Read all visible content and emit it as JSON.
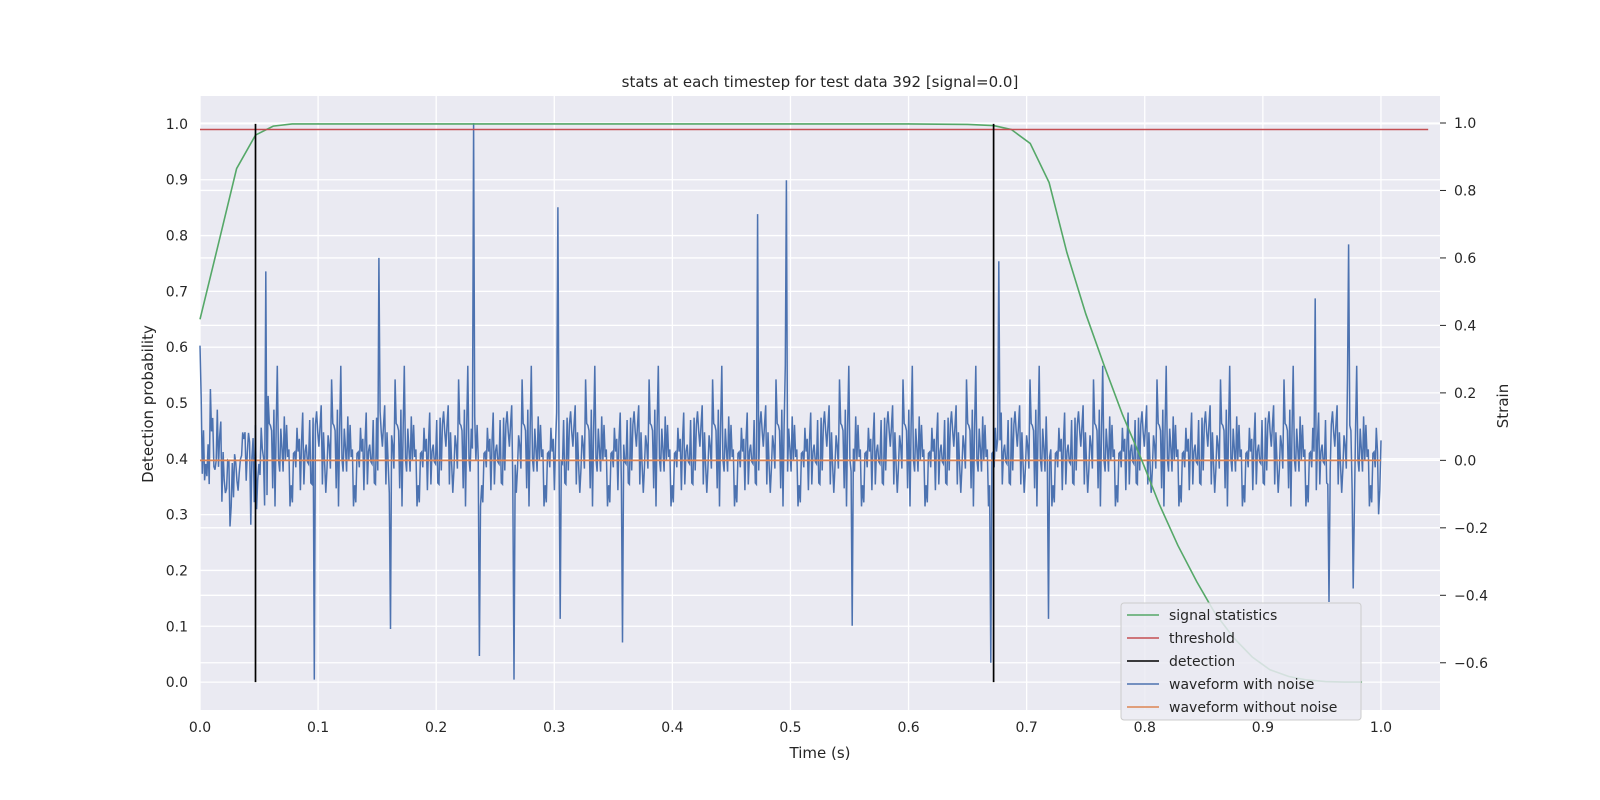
{
  "chart_data": {
    "type": "line",
    "title": "stats at each timestep for test data 392 [signal=0.0]",
    "xlabel": "Time (s)",
    "ylabel_left": "Detection probability",
    "ylabel_right": "Strain",
    "xlim": [
      0.0,
      1.05
    ],
    "ylim_left": [
      -0.05,
      1.05
    ],
    "ylim_right": [
      -0.74,
      1.08
    ],
    "xticks": [
      "0.0",
      "0.1",
      "0.2",
      "0.3",
      "0.4",
      "0.5",
      "0.6",
      "0.7",
      "0.8",
      "0.9",
      "1.0"
    ],
    "yticks_left": [
      "0.0",
      "0.1",
      "0.2",
      "0.3",
      "0.4",
      "0.5",
      "0.6",
      "0.7",
      "0.8",
      "0.9",
      "1.0"
    ],
    "yticks_right": [
      "−0.6",
      "−0.4",
      "−0.2",
      "0.0",
      "0.2",
      "0.4",
      "0.6",
      "0.8",
      "1.0"
    ],
    "grid": true,
    "legend_position": "lower-right",
    "colors": {
      "signal_statistics": "#55a868",
      "threshold": "#c44e52",
      "detection": "#000000",
      "waveform_with_noise": "#4c72b0",
      "waveform_without_noise": "#dd8452"
    },
    "series": [
      {
        "name": "signal statistics",
        "axis": "left",
        "x": [
          0.0,
          0.015,
          0.031,
          0.047,
          0.062,
          0.078,
          0.1,
          0.2,
          0.3,
          0.4,
          0.5,
          0.6,
          0.65,
          0.672,
          0.687,
          0.703,
          0.719,
          0.734,
          0.75,
          0.766,
          0.781,
          0.797,
          0.812,
          0.828,
          0.844,
          0.859,
          0.875,
          0.891,
          0.906,
          0.922,
          0.937,
          0.953,
          0.969,
          0.984
        ],
        "y": [
          0.65,
          0.78,
          0.92,
          0.98,
          0.996,
          1.0,
          1.0,
          1.0,
          1.0,
          1.0,
          1.0,
          1.0,
          0.999,
          0.997,
          0.99,
          0.965,
          0.895,
          0.77,
          0.66,
          0.565,
          0.48,
          0.4,
          0.32,
          0.245,
          0.18,
          0.125,
          0.08,
          0.045,
          0.022,
          0.01,
          0.004,
          0.001,
          0.0,
          0.0
        ]
      },
      {
        "name": "threshold",
        "axis": "left",
        "x": [
          0.0,
          1.04
        ],
        "y": [
          0.99,
          0.99
        ]
      },
      {
        "name": "detection",
        "axis": "left",
        "type": "vlines",
        "x": [
          0.047,
          0.672
        ],
        "ymin": 0.0,
        "ymax": 1.0
      },
      {
        "name": "waveform with noise",
        "axis": "right",
        "x_start": 0.0,
        "x_end": 1.0,
        "n_points": 1024,
        "amplitude": 0.17,
        "peaks": [
          {
            "x": 0.0,
            "y": 0.34
          },
          {
            "x": 0.056,
            "y": 0.56
          },
          {
            "x": 0.097,
            "y": -0.65
          },
          {
            "x": 0.152,
            "y": 0.6
          },
          {
            "x": 0.161,
            "y": -0.5
          },
          {
            "x": 0.232,
            "y": 1.0
          },
          {
            "x": 0.237,
            "y": -0.58
          },
          {
            "x": 0.266,
            "y": -0.65
          },
          {
            "x": 0.303,
            "y": 0.75
          },
          {
            "x": 0.305,
            "y": -0.47
          },
          {
            "x": 0.358,
            "y": -0.54
          },
          {
            "x": 0.472,
            "y": 0.73
          },
          {
            "x": 0.497,
            "y": 0.83
          },
          {
            "x": 0.552,
            "y": -0.49
          },
          {
            "x": 0.67,
            "y": -0.6
          },
          {
            "x": 0.676,
            "y": 0.59
          },
          {
            "x": 0.718,
            "y": -0.47
          },
          {
            "x": 0.944,
            "y": 0.48
          },
          {
            "x": 0.973,
            "y": 0.64
          },
          {
            "x": 0.956,
            "y": -0.42
          },
          {
            "x": 0.977,
            "y": -0.38
          },
          {
            "x": 0.998,
            "y": -0.16
          }
        ]
      },
      {
        "name": "waveform without noise",
        "axis": "right",
        "x": [
          0.0,
          1.0
        ],
        "y": [
          0.0,
          0.0
        ]
      }
    ]
  },
  "legend": {
    "items": [
      {
        "label": "signal statistics",
        "color": "#55a868"
      },
      {
        "label": "threshold",
        "color": "#c44e52"
      },
      {
        "label": "detection",
        "color": "#000000"
      },
      {
        "label": "waveform with noise",
        "color": "#4c72b0"
      },
      {
        "label": "waveform without noise",
        "color": "#dd8452"
      }
    ]
  }
}
